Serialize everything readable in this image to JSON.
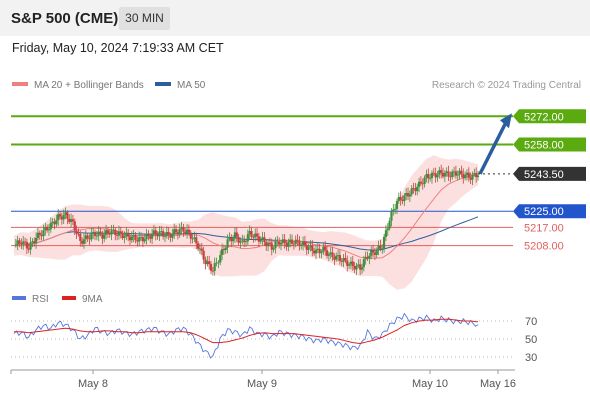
{
  "header": {
    "title": "S&P 500 (CME)",
    "interval": "30 MIN"
  },
  "datetime": "Friday, May 10, 2024 7:19:33 AM CET",
  "legend": [
    {
      "label": "MA 20 + Bollinger Bands",
      "color": "#f08080"
    },
    {
      "label": "MA 50",
      "color": "#2c5e9e"
    }
  ],
  "research_note": "Research © 2024 Trading Central",
  "rsi_legend": [
    {
      "label": "RSI",
      "color": "#5577dd"
    },
    {
      "label": "9MA",
      "color": "#dd2222"
    }
  ],
  "colors": {
    "green_level": "#5aaa10",
    "blue_level": "#2255cc",
    "red_level": "#e06060",
    "current": "#333333",
    "arrow": "#2c5e9e",
    "bull": "#3f8f3f",
    "bear": "#c84040",
    "band": "#fbdada",
    "ma20": "#f08080",
    "ma50": "#2c5e9e",
    "rsi": "#5577dd",
    "rsi_ma": "#dd2222"
  },
  "chart_data": [
    {
      "type": "candlestick",
      "title": "S&P 500 (CME)",
      "interval": "30 MIN",
      "ylim": [
        5188,
        5285
      ],
      "x_ticks": [
        "May 8",
        "May 9",
        "May 10",
        "May 16"
      ],
      "levels": [
        {
          "value": 5272.0,
          "label": "5272.00",
          "kind": "resistance"
        },
        {
          "value": 5258.0,
          "label": "5258.00",
          "kind": "resistance"
        },
        {
          "value": 5243.5,
          "label": "5243.50",
          "kind": "last"
        },
        {
          "value": 5225.0,
          "label": "5225.00",
          "kind": "pivot"
        },
        {
          "value": 5217.0,
          "label": "5217.00",
          "kind": "support"
        },
        {
          "value": 5208.0,
          "label": "5208.00",
          "kind": "support"
        }
      ],
      "close_path": [
        5208,
        5210,
        5207,
        5212,
        5215,
        5218,
        5222,
        5223,
        5219,
        5210,
        5212,
        5214,
        5213,
        5215,
        5214,
        5213,
        5212,
        5211,
        5212,
        5214,
        5214,
        5213,
        5215,
        5216,
        5213,
        5208,
        5200,
        5196,
        5203,
        5210,
        5213,
        5209,
        5214,
        5212,
        5210,
        5207,
        5210,
        5209,
        5210,
        5209,
        5207,
        5205,
        5206,
        5203,
        5202,
        5200,
        5198,
        5197,
        5203,
        5205,
        5208,
        5221,
        5230,
        5232,
        5235,
        5238,
        5242,
        5243,
        5244,
        5243,
        5244,
        5243,
        5242,
        5243.5
      ],
      "projection": {
        "from": 5243.5,
        "to": 5272
      }
    },
    {
      "type": "line",
      "title": "RSI",
      "ylim": [
        20,
        80
      ],
      "y_ticks": [
        70,
        50,
        30
      ],
      "series": [
        {
          "name": "RSI",
          "values": [
            56,
            57,
            52,
            60,
            65,
            62,
            68,
            66,
            60,
            50,
            54,
            62,
            58,
            56,
            60,
            57,
            55,
            58,
            60,
            62,
            58,
            55,
            60,
            62,
            55,
            45,
            36,
            30,
            50,
            60,
            58,
            54,
            62,
            56,
            55,
            52,
            58,
            56,
            54,
            53,
            50,
            48,
            50,
            47,
            45,
            43,
            40,
            42,
            58,
            50,
            55,
            65,
            72,
            76,
            70,
            72,
            74,
            70,
            73,
            71,
            69,
            70,
            68,
            66
          ]
        },
        {
          "name": "9MA",
          "values": [
            58,
            58,
            57,
            58,
            59,
            60,
            61,
            62,
            61,
            59,
            58,
            58,
            59,
            59,
            58,
            58,
            57,
            57,
            58,
            58,
            58,
            58,
            58,
            58,
            57,
            54,
            50,
            46,
            46,
            47,
            49,
            51,
            54,
            56,
            57,
            56,
            56,
            56,
            56,
            55,
            54,
            53,
            52,
            51,
            50,
            48,
            46,
            45,
            47,
            49,
            52,
            56,
            60,
            65,
            68,
            70,
            71,
            71,
            72,
            72,
            71,
            70,
            70,
            69
          ]
        }
      ]
    }
  ]
}
